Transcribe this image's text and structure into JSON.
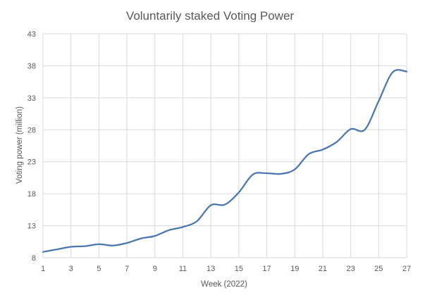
{
  "chart_data": {
    "type": "line",
    "title": "Voluntarily staked Voting Power",
    "xlabel": "Week (2022)",
    "ylabel": "Voting power (million)",
    "xlim": [
      1,
      27
    ],
    "ylim": [
      8,
      43
    ],
    "x_ticks": [
      1,
      3,
      5,
      7,
      9,
      11,
      13,
      15,
      17,
      19,
      21,
      23,
      25,
      27
    ],
    "y_ticks": [
      8,
      13,
      18,
      23,
      28,
      33,
      38,
      43
    ],
    "grid": true,
    "legend": "none",
    "series": [
      {
        "color": "#4a76b2",
        "x": [
          1,
          2,
          3,
          4,
          5,
          6,
          7,
          8,
          9,
          10,
          11,
          12,
          13,
          14,
          15,
          16,
          17,
          18,
          19,
          20,
          21,
          22,
          23,
          24,
          25,
          26,
          27
        ],
        "values": [
          8.9,
          9.3,
          9.7,
          9.8,
          10.1,
          9.9,
          10.3,
          11.0,
          11.4,
          12.3,
          12.8,
          13.7,
          16.2,
          16.3,
          18.2,
          21.0,
          21.2,
          21.1,
          21.8,
          24.2,
          24.9,
          26.1,
          28.1,
          28.0,
          32.5,
          37.0,
          37.1
        ]
      }
    ],
    "colors": {
      "grid": "#d9d9d9",
      "text": "#595959",
      "line": "#4a76b2"
    }
  }
}
